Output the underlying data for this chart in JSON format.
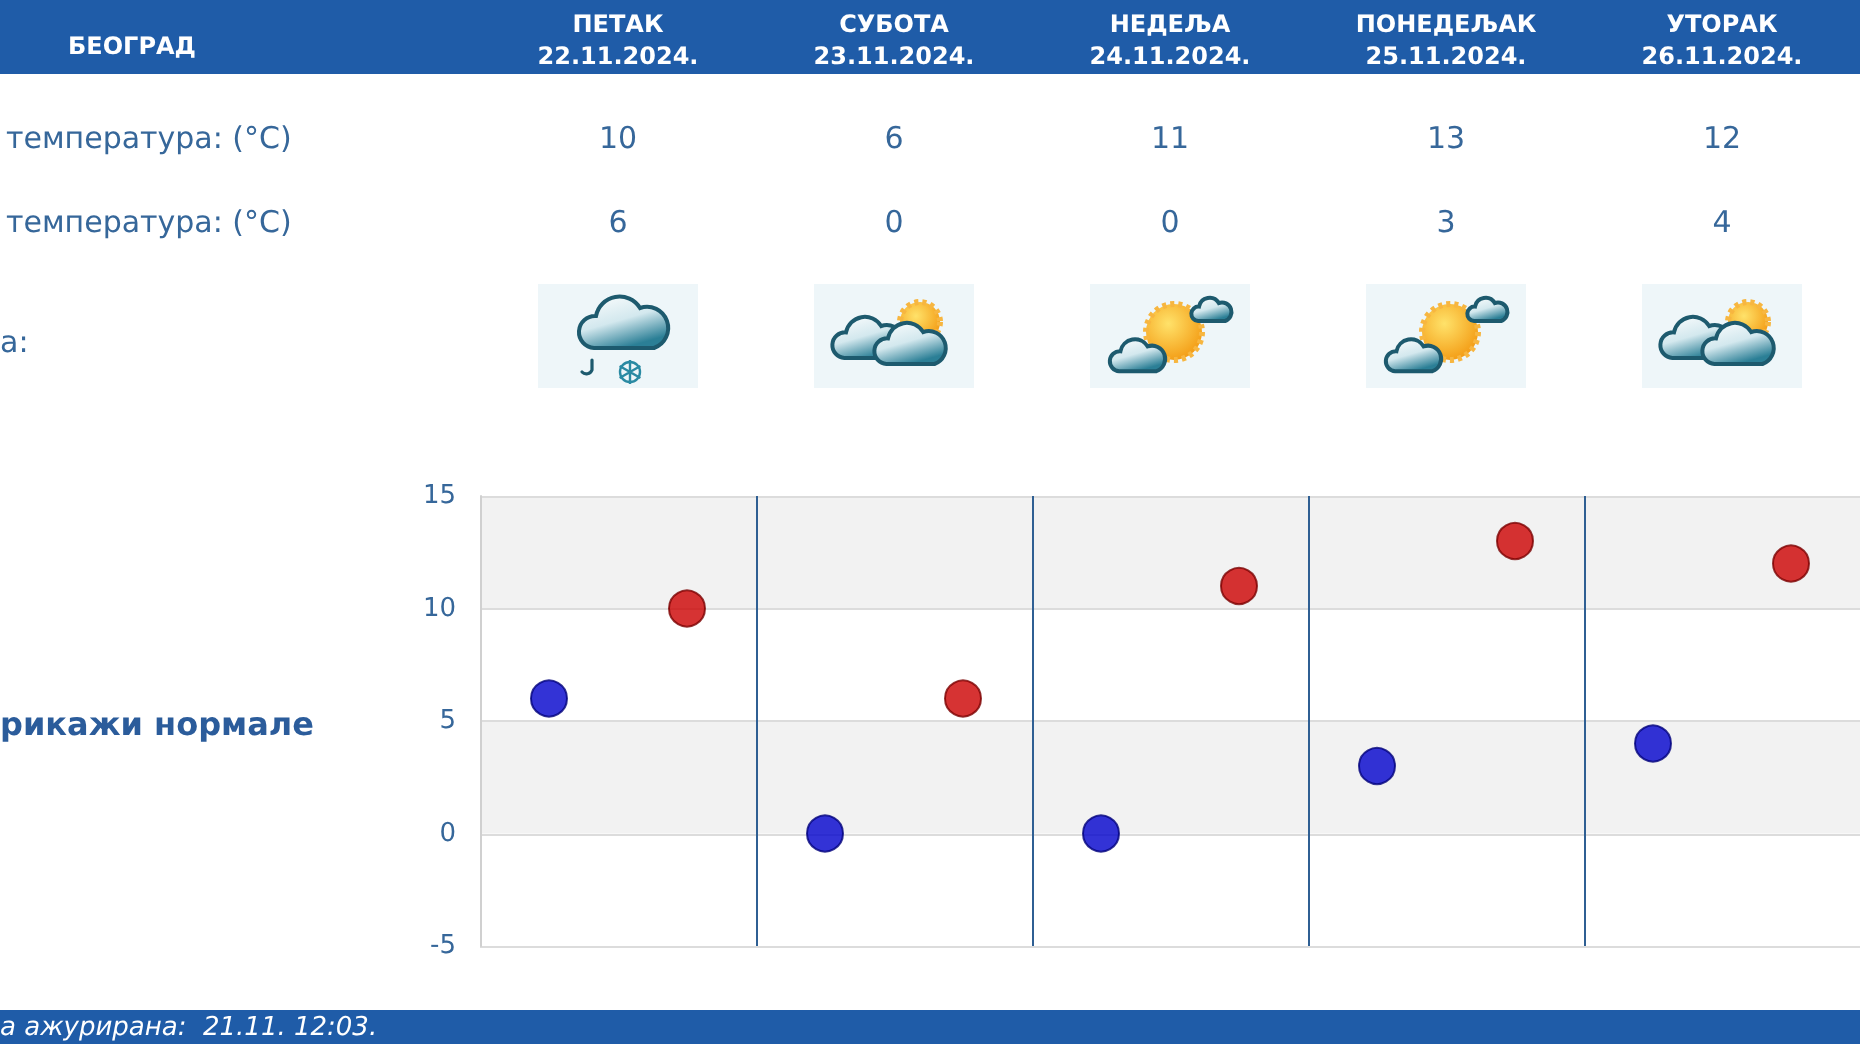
{
  "chart_data": {
    "type": "scatter",
    "title": "БЕОГРАД",
    "categories": [
      null,
      null,
      null,
      null,
      null,
      null,
      null,
      null,
      null,
      null
    ],
    "series": [
      {
        "color": "#cc0000",
        "values": [
          null,
          10,
          null,
          6,
          null,
          11,
          null,
          13,
          null,
          12
        ]
      },
      {
        "color": "#0000cc",
        "values": [
          6,
          null,
          0,
          null,
          0,
          null,
          3,
          null,
          4,
          null
        ]
      }
    ],
    "ylim": [
      -5,
      15
    ],
    "yticks": [
      -5,
      0,
      5,
      10,
      15
    ],
    "grid": true,
    "marker": "circle",
    "data_labels": true,
    "annotations": [
      "ПЕТАК 22.11.2024.",
      "СУБОТА 23.11.2024.",
      "НЕДЕЉА 24.11.2024.",
      "ПОНЕДЕЉАК 25.11.2024.",
      "УТОРАК 26.11.2024.",
      "температура: (°C)",
      "температура: (°C)",
      "а:",
      "рикажи нормале",
      "а ажурирана:  21.11. 12:03."
    ]
  }
}
